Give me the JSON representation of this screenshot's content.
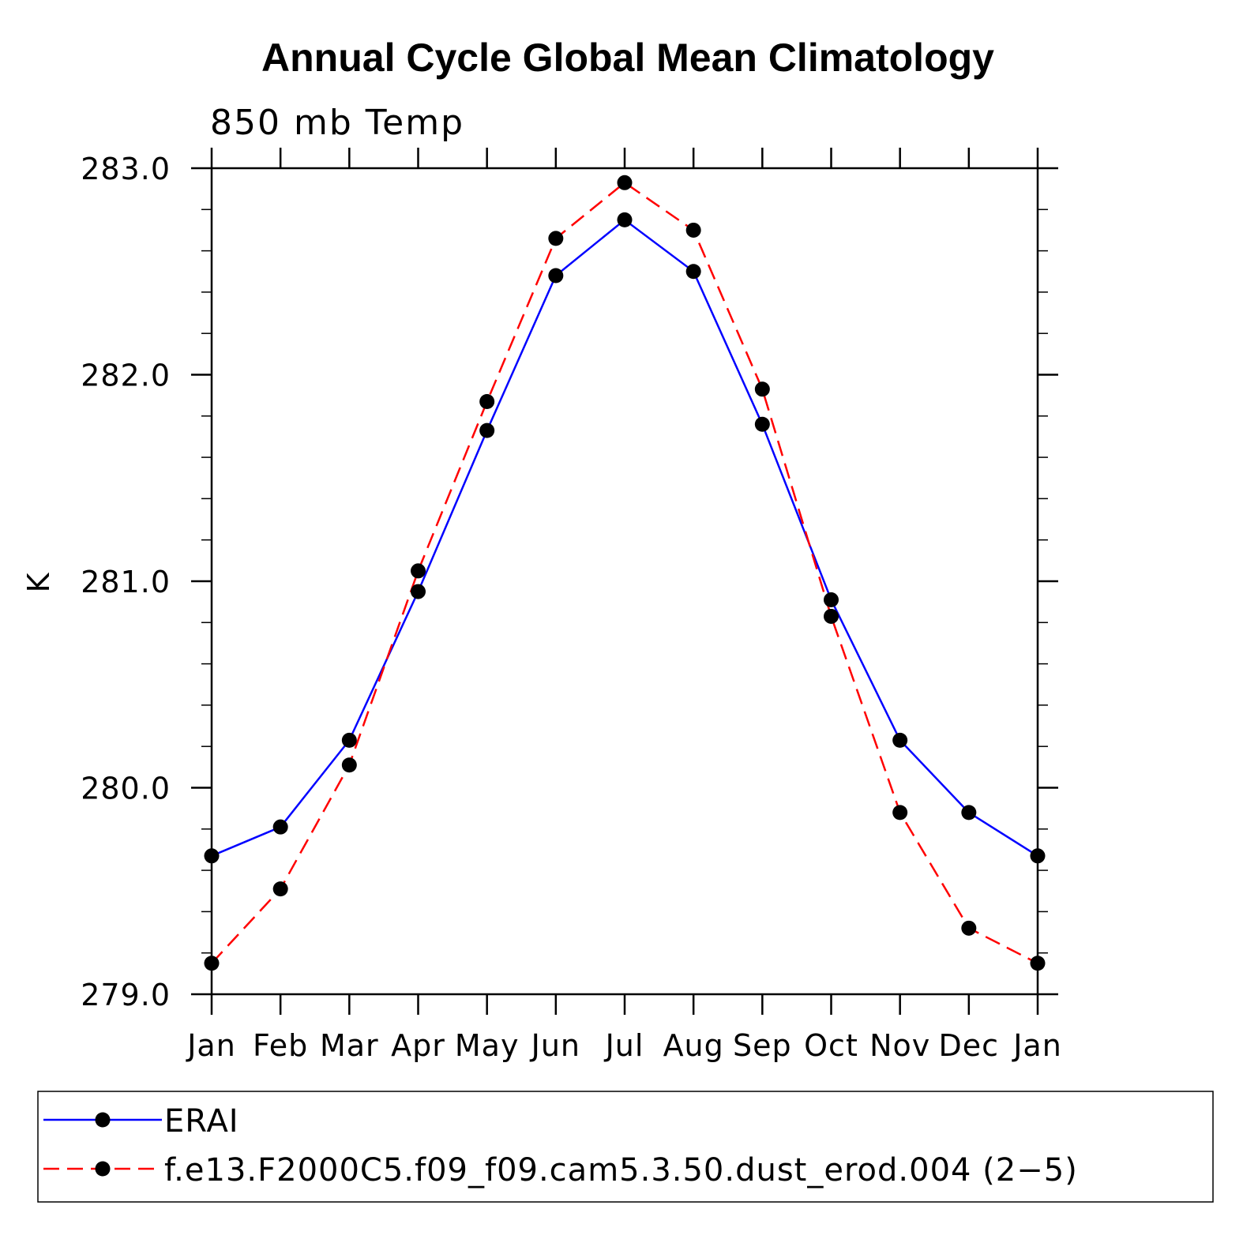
{
  "chart_data": {
    "type": "line",
    "title": "Annual Cycle Global Mean Climatology",
    "subtitle": "850 mb Temp",
    "ylabel": "K",
    "xlabel": "",
    "categories": [
      "Jan",
      "Feb",
      "Mar",
      "Apr",
      "May",
      "Jun",
      "Jul",
      "Aug",
      "Sep",
      "Oct",
      "Nov",
      "Dec",
      "Jan"
    ],
    "ylim": [
      279.0,
      283.0
    ],
    "yticks": [
      "279.0",
      "280.0",
      "281.0",
      "282.0",
      "283.0"
    ],
    "yticks_values": [
      279.0,
      280.0,
      281.0,
      282.0,
      283.0
    ],
    "legend_position": "bottom",
    "series": [
      {
        "name": "ERAI",
        "color": "#0000ff",
        "dash": "solid",
        "values": [
          279.67,
          279.81,
          280.23,
          280.95,
          281.73,
          282.48,
          282.75,
          282.5,
          281.76,
          280.91,
          280.23,
          279.88,
          279.67
        ]
      },
      {
        "name": "f.e13.F2000C5.f09_f09.cam5.3.50.dust_erod.004 (2−5)",
        "color": "#ff0000",
        "dash": "dashed",
        "values": [
          279.15,
          279.51,
          280.11,
          281.05,
          281.87,
          282.66,
          282.93,
          282.7,
          281.93,
          280.83,
          279.88,
          279.32,
          279.15
        ]
      }
    ]
  }
}
